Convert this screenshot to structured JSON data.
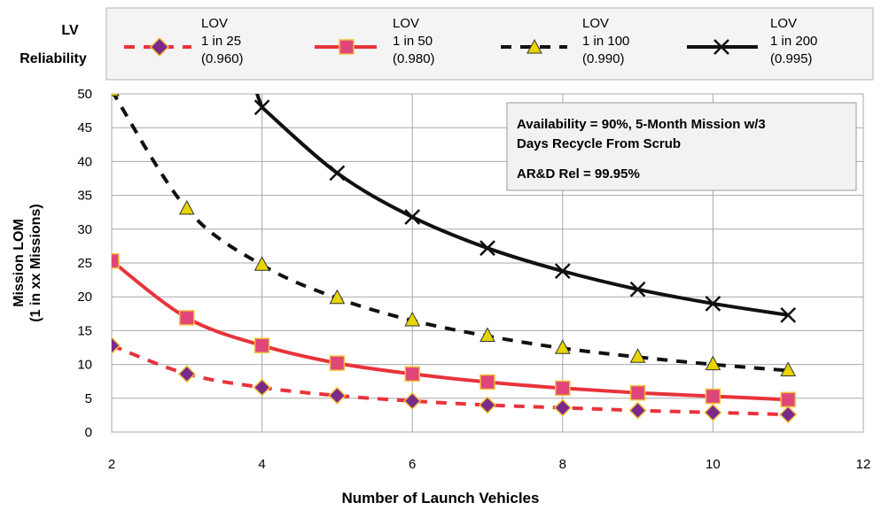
{
  "legend": {
    "title_line1": "LV",
    "title_line2": "Reliability",
    "entries": [
      {
        "header": "LOV",
        "line1": "1 in 25",
        "line2": "(0.960)"
      },
      {
        "header": "LOV",
        "line1": "1 in 50",
        "line2": "(0.980)"
      },
      {
        "header": "LOV",
        "line1": "1 in 100",
        "line2": "(0.990)"
      },
      {
        "header": "LOV",
        "line1": "1 in 200",
        "line2": "(0.995)"
      }
    ]
  },
  "annotation": {
    "line1": "Availability = 90%,  5-Month Mission w/3",
    "line2": "Days Recycle From Scrub",
    "line3": "AR&D Rel = 99.95%"
  },
  "axes": {
    "xlabel": "Number of Launch Vehicles",
    "ylabel_line1": "Mission LOM",
    "ylabel_line2": "(1 in xx Missions)",
    "xticks": [
      "2",
      "4",
      "6",
      "8",
      "10",
      "12"
    ],
    "yticks": [
      "0",
      "5",
      "10",
      "15",
      "20",
      "25",
      "30",
      "35",
      "40",
      "45",
      "50"
    ]
  },
  "colors": {
    "series_1": "#e8333a",
    "series_2": "#e8333a",
    "series_3": "#111111",
    "series_4": "#111111",
    "diamond_fill": "#7a2a8a",
    "square_fill": "#e0467a",
    "triangle_fill": "#e8d400",
    "annotation_bg": "#f2f2f2",
    "legend_bg": "#f4f4f4"
  },
  "chart_data": {
    "type": "line",
    "xlabel": "Number of Launch Vehicles",
    "ylabel": "Mission LOM (1 in xx Missions)",
    "xlim": [
      2,
      12
    ],
    "ylim": [
      0,
      50
    ],
    "grid": true,
    "legend_position": "top",
    "x": [
      2,
      3,
      4,
      5,
      6,
      7,
      8,
      9,
      10,
      11
    ],
    "series": [
      {
        "name": "LOV 1 in 25 (0.960)",
        "style": "dashed",
        "marker": "diamond",
        "x": [
          2,
          3,
          4,
          5,
          6,
          7,
          8,
          9,
          10,
          11
        ],
        "values": [
          12.8,
          8.6,
          6.6,
          5.4,
          4.6,
          4.0,
          3.6,
          3.2,
          2.9,
          2.6
        ]
      },
      {
        "name": "LOV 1 in 50 (0.980)",
        "style": "solid",
        "marker": "square",
        "x": [
          2,
          3,
          4,
          5,
          6,
          7,
          8,
          9,
          10,
          11
        ],
        "values": [
          25.3,
          16.9,
          12.8,
          10.2,
          8.6,
          7.4,
          6.5,
          5.8,
          5.3,
          4.8
        ]
      },
      {
        "name": "LOV 1 in 100 (0.990)",
        "style": "dashed",
        "marker": "triangle",
        "x": [
          2,
          3,
          4,
          5,
          6,
          7,
          8,
          9,
          10,
          11
        ],
        "values": [
          50.5,
          33.0,
          24.7,
          19.8,
          16.5,
          14.2,
          12.4,
          11.1,
          10.0,
          9.1
        ]
      },
      {
        "name": "LOV 1 in 200 (0.995)",
        "style": "solid",
        "marker": "x",
        "x": [
          4,
          5,
          6,
          7,
          8,
          9,
          10,
          11
        ],
        "values": [
          48.0,
          38.3,
          31.8,
          27.2,
          23.8,
          21.1,
          19.0,
          17.3
        ]
      }
    ]
  }
}
